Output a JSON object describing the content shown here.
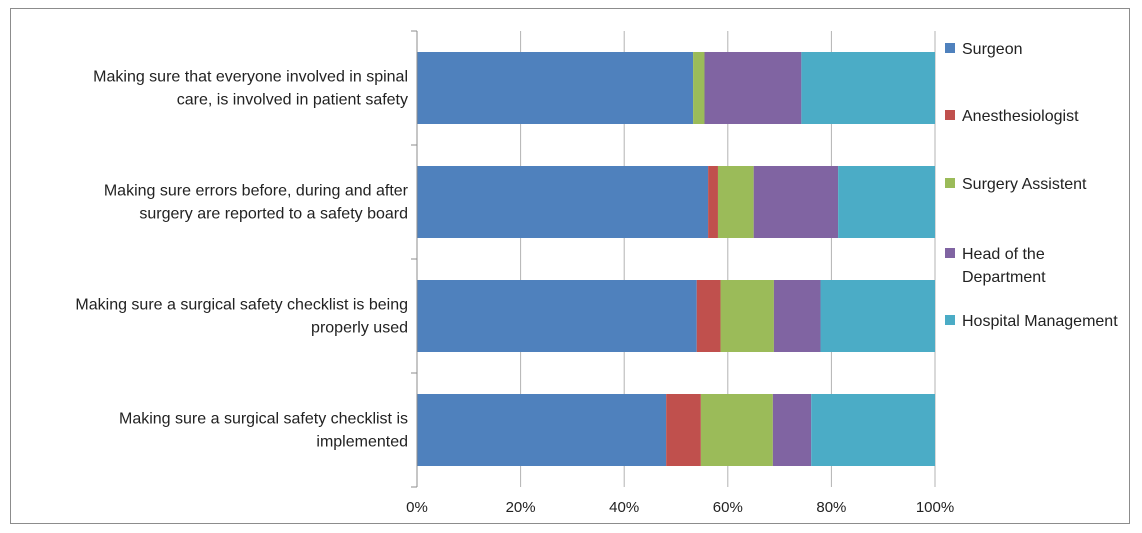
{
  "chart_data": {
    "type": "bar",
    "orientation": "horizontal",
    "stacked": "percent",
    "categories": [
      [
        "Making sure that everyone involved in spinal",
        "care, is involved in patient safety"
      ],
      [
        "Making sure errors before, during and after",
        "surgery are reported to a safety board"
      ],
      [
        "Making sure a surgical safety checklist is being",
        "properly used"
      ],
      [
        "Making sure a surgical safety checklist is",
        "implemented"
      ]
    ],
    "series": [
      {
        "name": "Surgeon",
        "color": "#4f81bd",
        "values": [
          53.3,
          56.2,
          54.0,
          48.1
        ]
      },
      {
        "name": "Anesthesiologist",
        "color": "#c0504d",
        "values": [
          0.0,
          1.9,
          4.6,
          6.7
        ]
      },
      {
        "name": "Surgery Assistent",
        "color": "#9bbb59",
        "values": [
          2.2,
          6.9,
          10.3,
          13.9
        ]
      },
      {
        "name": "Head of the Department",
        "legend_lines": [
          "Head of the",
          "Department"
        ],
        "color": "#8064a2",
        "values": [
          18.7,
          16.3,
          9.0,
          7.4
        ]
      },
      {
        "name": "Hospital Management",
        "color": "#4bacc6",
        "values": [
          25.8,
          18.7,
          22.1,
          23.9
        ]
      }
    ],
    "x_ticks": [
      "0%",
      "20%",
      "40%",
      "60%",
      "80%",
      "100%"
    ],
    "xlim": [
      0,
      100
    ],
    "grid": "vertical",
    "legend_position": "right",
    "title": "",
    "xlabel": "",
    "ylabel": ""
  }
}
